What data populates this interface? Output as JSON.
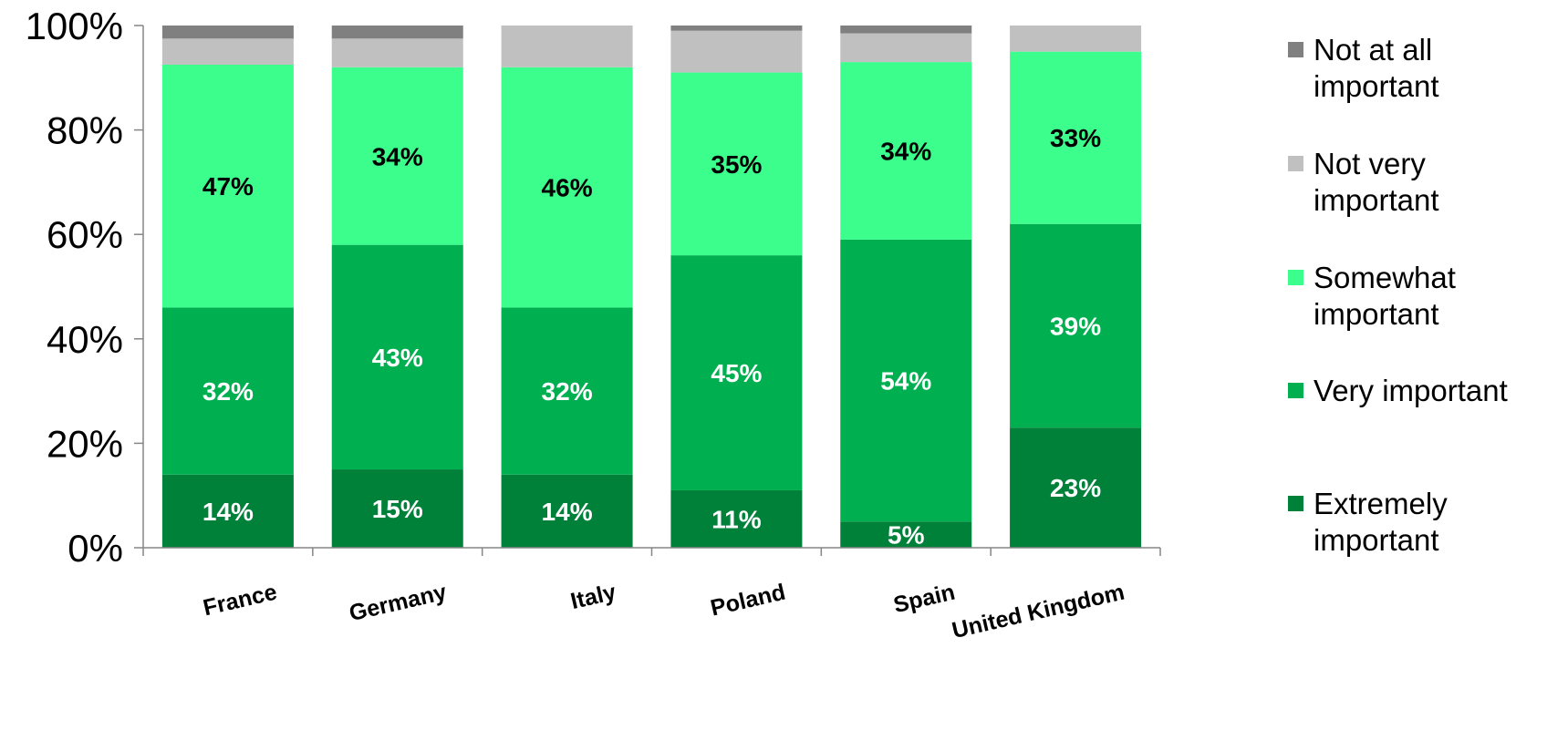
{
  "chart_data": {
    "type": "bar",
    "stacked": true,
    "categories": [
      "France",
      "Germany",
      "Italy",
      "Poland",
      "Spain",
      "United Kingdom"
    ],
    "series": [
      {
        "name": "Extremely important",
        "color": "#00813a",
        "label_color": "#ffffff",
        "values": [
          14,
          15,
          14,
          11,
          5,
          23
        ],
        "labels": [
          "14%",
          "15%",
          "14%",
          "11%",
          "5%",
          "23%"
        ]
      },
      {
        "name": "Very important",
        "color": "#00b050",
        "label_color": "#ffffff",
        "values": [
          32,
          43,
          32,
          45,
          54,
          39
        ],
        "labels": [
          "32%",
          "43%",
          "32%",
          "45%",
          "54%",
          "39%"
        ]
      },
      {
        "name": "Somewhat important",
        "color": "#3cfe8c",
        "label_color": "#000000",
        "values": [
          46.5,
          34,
          46,
          35,
          34,
          33
        ],
        "labels": [
          "47%",
          "34%",
          "46%",
          "35%",
          "34%",
          "33%"
        ]
      },
      {
        "name": "Not very important",
        "color": "#c0c0c0",
        "label_color": "#000000",
        "values": [
          5,
          5.5,
          8,
          8,
          5.5,
          5
        ],
        "labels": [
          "",
          "",
          "",
          "",
          "",
          ""
        ]
      },
      {
        "name": "Not at all important",
        "color": "#808080",
        "label_color": "#000000",
        "values": [
          3,
          2.5,
          0,
          1,
          1.5,
          0.5
        ],
        "labels": [
          "",
          "",
          "",
          "",
          "",
          ""
        ]
      }
    ],
    "title": "",
    "xlabel": "",
    "ylabel": "",
    "ylim": [
      0,
      100
    ],
    "yticks": [
      "0%",
      "20%",
      "40%",
      "60%",
      "80%",
      "100%"
    ],
    "grid": false,
    "legend": {
      "position": "right",
      "order": [
        "Not at all important",
        "Not very important",
        "Somewhat important",
        "Very important",
        "Extremely important"
      ],
      "entries": {
        "Not at all important": [
          "Not at all",
          "important"
        ],
        "Not very important": [
          "Not very",
          "important"
        ],
        "Somewhat important": [
          "Somewhat",
          "important"
        ],
        "Very important": [
          "Very important"
        ],
        "Extremely important": [
          "Extremely",
          "important"
        ]
      }
    }
  }
}
